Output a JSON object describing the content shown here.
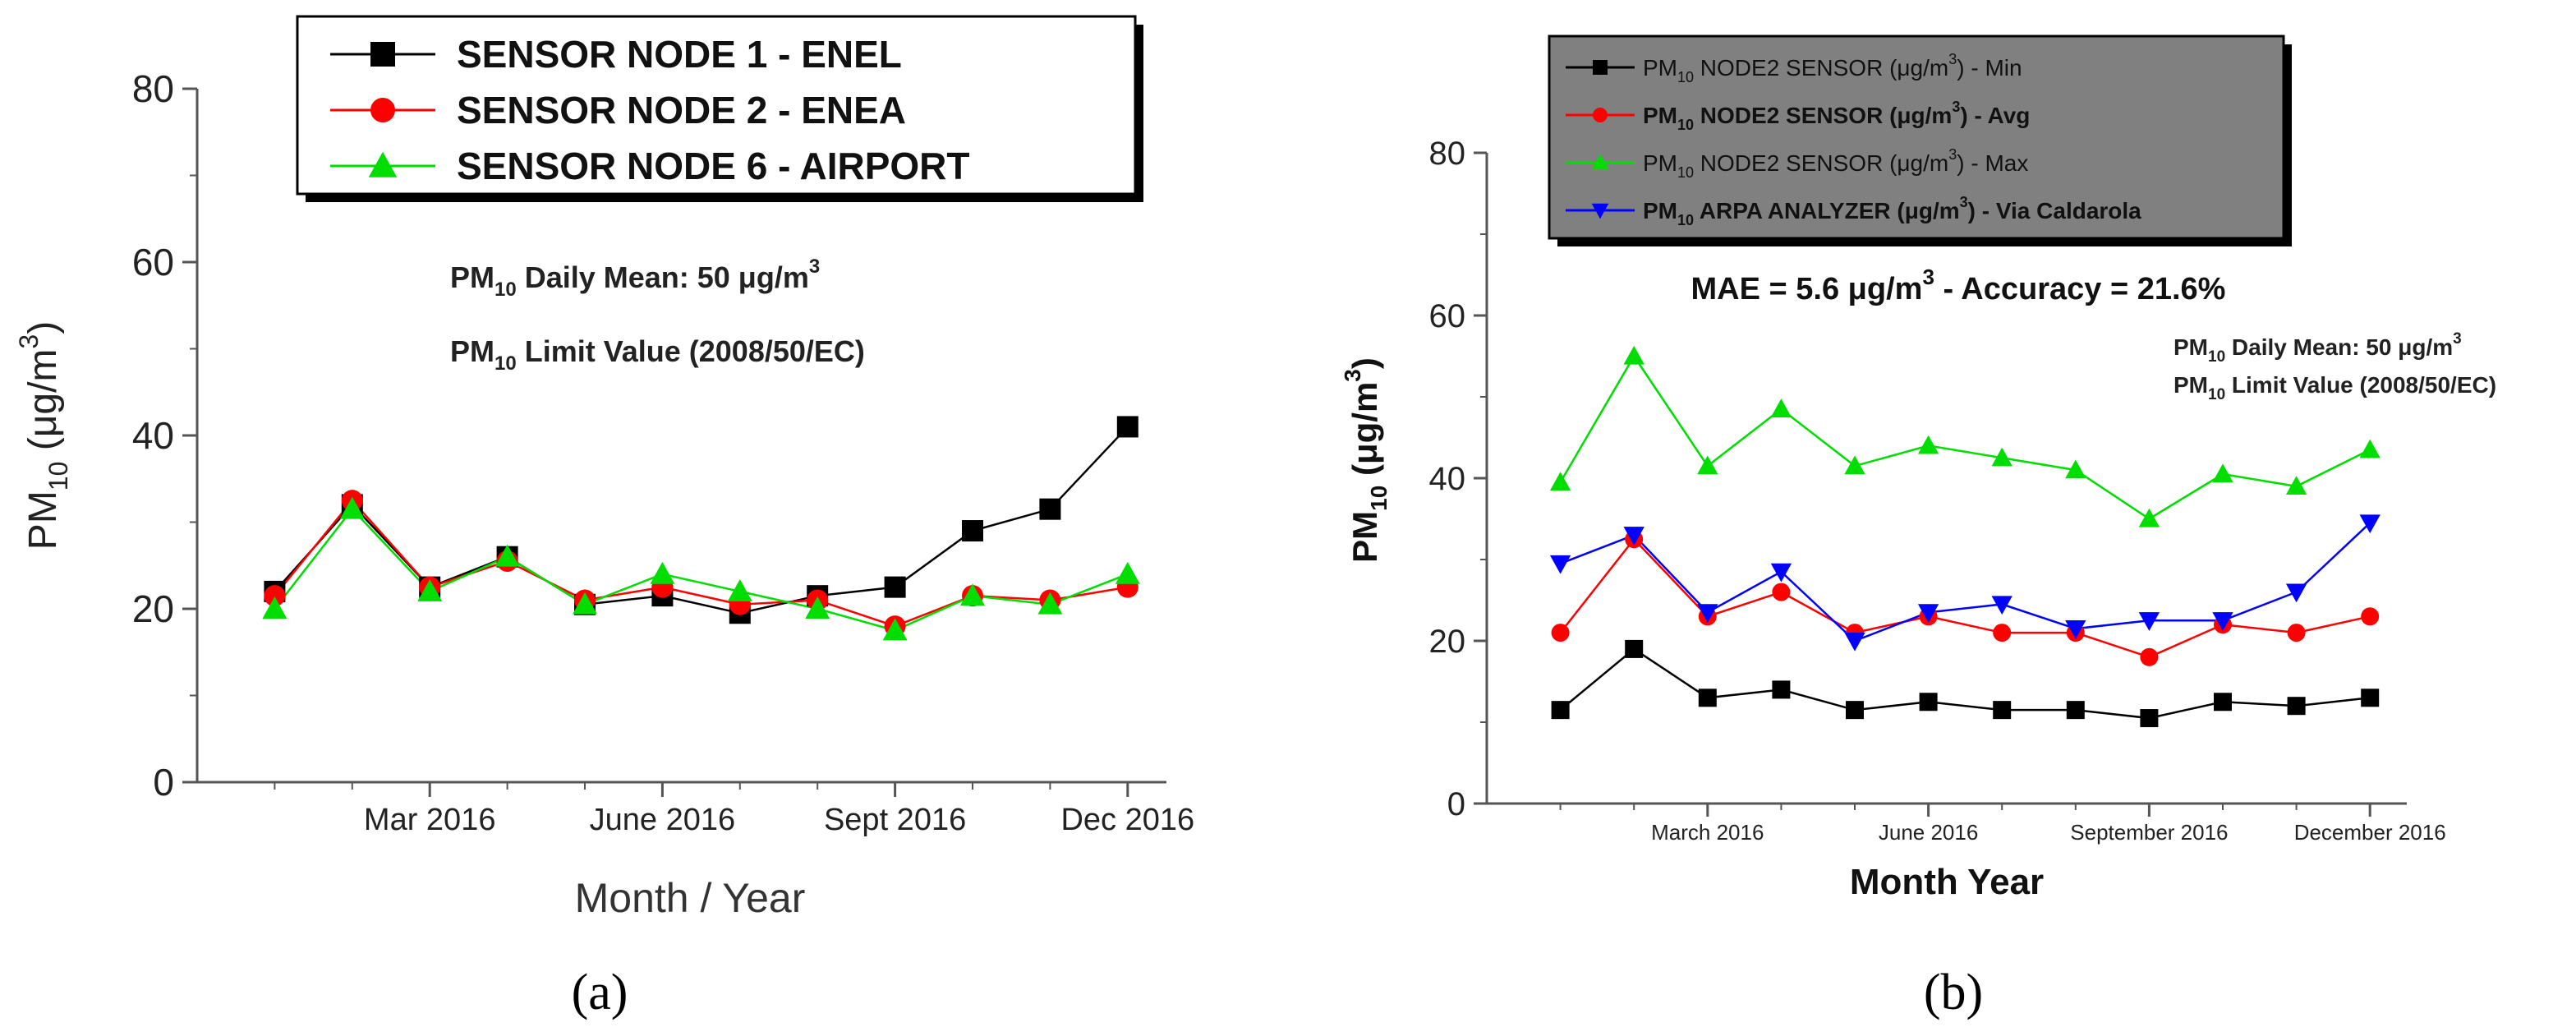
{
  "chart_data": [
    {
      "type": "line",
      "panel_label": "(a)",
      "xlabel": "Month / Year",
      "ylabel": "PM10 (μg/m3)",
      "ylim": [
        0,
        80
      ],
      "yticks": [
        0,
        20,
        40,
        60,
        80
      ],
      "x": [
        1,
        2,
        3,
        4,
        5,
        6,
        7,
        8,
        9,
        10,
        11,
        12
      ],
      "xlim": [
        0,
        12.5
      ],
      "xticks": [
        {
          "x": 3,
          "label": "Mar 2016"
        },
        {
          "x": 6,
          "label": "June 2016"
        },
        {
          "x": 9,
          "label": "Sept 2016"
        },
        {
          "x": 12,
          "label": "Dec 2016"
        }
      ],
      "annotations": [
        {
          "prefix": "PM",
          "sub": "10",
          "text": " Daily Mean: 50 μg/m",
          "sup": "3"
        },
        {
          "prefix": "PM",
          "sub": "10",
          "text": " Limit Value (2008/50/EC)",
          "sup": ""
        }
      ],
      "legend_placement": "top-center",
      "series": [
        {
          "name": "SENSOR NODE 1 - ENEL",
          "color": "#000000",
          "marker": "square",
          "values": [
            22,
            32,
            22.5,
            26,
            20.5,
            21.5,
            19.5,
            21.5,
            22.5,
            29,
            31.5,
            41
          ]
        },
        {
          "name": "SENSOR NODE 2 - ENEA",
          "color": "#ff0000",
          "marker": "circle",
          "values": [
            21.5,
            32.5,
            22.5,
            25.5,
            21,
            22.5,
            20.5,
            21,
            18,
            21.5,
            21,
            22.5
          ]
        },
        {
          "name": "SENSOR NODE 6 - AIRPORT",
          "color": "#00dd00",
          "marker": "triangle-up",
          "values": [
            20,
            31.5,
            22,
            26,
            20.5,
            24,
            22,
            20,
            17.5,
            21.5,
            20.5,
            24
          ]
        }
      ]
    },
    {
      "type": "line",
      "panel_label": "(b)",
      "xlabel": "Month Year",
      "ylabel": "PM10 (μg/m3)",
      "ylim": [
        0,
        80
      ],
      "yticks": [
        0,
        20,
        40,
        60,
        80
      ],
      "x": [
        1,
        2,
        3,
        4,
        5,
        6,
        7,
        8,
        9,
        10,
        11,
        12
      ],
      "xlim": [
        0,
        12.5
      ],
      "xticks": [
        {
          "x": 3,
          "label": "March 2016"
        },
        {
          "x": 6,
          "label": "June 2016"
        },
        {
          "x": 9,
          "label": "September 2016"
        },
        {
          "x": 12,
          "label": "December 2016"
        }
      ],
      "title": "MAE = 5.6 μg/m3 - Accuracy = 21.6%",
      "annotations": [
        {
          "prefix": "PM",
          "sub": "10",
          "text": " Daily Mean: 50 μg/m",
          "sup": "3"
        },
        {
          "prefix": "PM",
          "sub": "10",
          "text": " Limit Value (2008/50/EC)",
          "sup": ""
        }
      ],
      "legend_placement": "top-left",
      "series": [
        {
          "name": "PM10 NODE2 SENSOR (μg/m3) - Min",
          "color": "#000000",
          "marker": "square",
          "values": [
            11.5,
            19,
            13,
            14,
            11.5,
            12.5,
            11.5,
            11.5,
            10.5,
            12.5,
            12,
            13
          ]
        },
        {
          "name": "PM10 NODE2 SENSOR (μg/m3) - Avg",
          "color": "#ff0000",
          "marker": "circle",
          "values": [
            21,
            32.5,
            23,
            26,
            21,
            23,
            21,
            21,
            18,
            22,
            21,
            23
          ]
        },
        {
          "name": "PM10 NODE2 SENSOR (μg/m3) - Max",
          "color": "#00dd00",
          "marker": "triangle-up",
          "values": [
            39.5,
            55,
            41.5,
            48.5,
            41.5,
            44,
            42.5,
            41,
            35,
            40.5,
            39,
            43.5
          ]
        },
        {
          "name": "PM10 ARPA ANALYZER (μg/m3) - Via Caldarola",
          "color": "#0000ff",
          "marker": "triangle-down",
          "values": [
            29.5,
            33,
            23.5,
            28.5,
            20,
            23.5,
            24.5,
            21.5,
            22.5,
            22.5,
            26,
            34.5
          ]
        }
      ],
      "legend": [
        {
          "pre": "PM",
          "sub": "10",
          "mid": " NODE2 SENSOR (μg/m",
          "sup": "3",
          "post": ") - Min",
          "bold": false
        },
        {
          "pre": "PM",
          "sub": "10",
          "mid": " NODE2 SENSOR (μg/m",
          "sup": "3",
          "post": ") - Avg",
          "bold": true
        },
        {
          "pre": "PM",
          "sub": "10",
          "mid": " NODE2 SENSOR (μg/m",
          "sup": "3",
          "post": ") - Max",
          "bold": false
        },
        {
          "pre": "PM",
          "sub": "10",
          "mid": " ARPA ANALYZER (μg/m",
          "sup": "3",
          "post": ") - Via Caldarola",
          "bold": true
        }
      ]
    }
  ]
}
